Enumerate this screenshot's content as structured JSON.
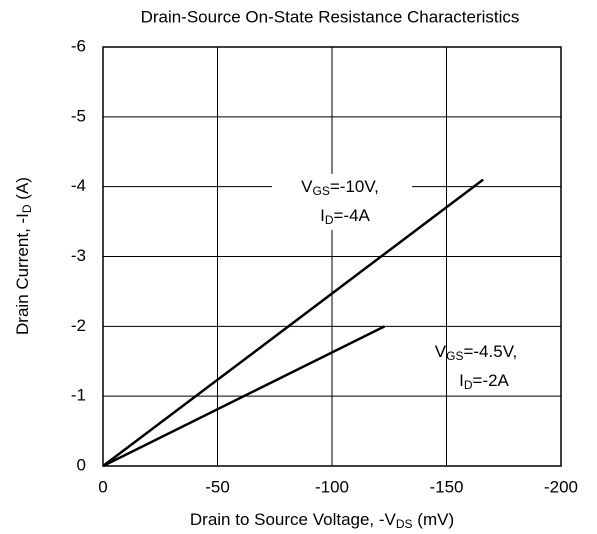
{
  "chart_data": {
    "type": "line",
    "title": "Drain-Source On-State Resistance Characteristics",
    "x_label": [
      "Drain to Source Voltage, -V",
      "DS",
      " (mV)"
    ],
    "y_label": [
      "Drain Current, -I",
      "D",
      " (A)"
    ],
    "xlim": [
      0,
      -200
    ],
    "xticks": [
      0,
      -50,
      -100,
      -150,
      -200
    ],
    "ylim": [
      0,
      -6
    ],
    "yticks": [
      0,
      -1,
      -2,
      -3,
      -4,
      -5,
      -6
    ],
    "grid": true,
    "series": [
      {
        "color": "#000000",
        "x": [
          0,
          -166
        ],
        "values": [
          0,
          -4.1
        ]
      },
      {
        "color": "#000000",
        "x": [
          0,
          -123
        ],
        "values": [
          0,
          -2
        ]
      }
    ],
    "annotations": [
      {
        "lines": [
          [
            "V",
            "GS",
            "=-10V,"
          ],
          [
            "I",
            "D",
            "=-4A"
          ]
        ]
      },
      {
        "lines": [
          [
            "V",
            "GS",
            "=-4.5V,"
          ],
          [
            "I",
            "D",
            "=-2A"
          ]
        ]
      }
    ]
  }
}
